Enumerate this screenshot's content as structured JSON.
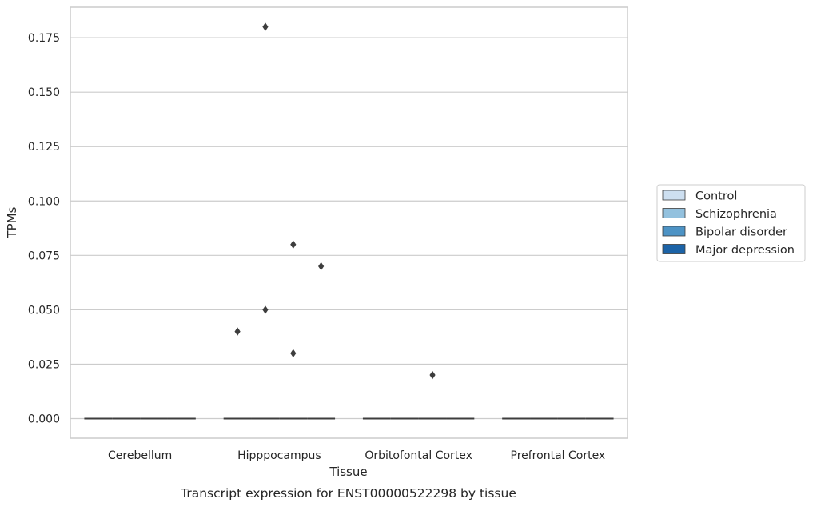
{
  "chart_data": {
    "type": "boxplot",
    "xlabel": "Tissue",
    "ylabel": "TPMs",
    "caption": "Transcript expression for ENST00000522298 by tissue",
    "categories": [
      "Cerebellum",
      "Hipppocampus",
      "Orbitofontal Cortex",
      "Prefrontal Cortex"
    ],
    "ylim": [
      -0.009,
      0.189
    ],
    "yticks": [
      0.0,
      0.025,
      0.05,
      0.075,
      0.1,
      0.125,
      0.15,
      0.175
    ],
    "ytick_labels": [
      "0.000",
      "0.025",
      "0.050",
      "0.075",
      "0.100",
      "0.125",
      "0.150",
      "0.175"
    ],
    "grid": "horizontal",
    "legend_position": "right",
    "series": [
      {
        "name": "Control",
        "color": "#cddff0"
      },
      {
        "name": "Schizophrenia",
        "color": "#93c1de"
      },
      {
        "name": "Bipolar disorder",
        "color": "#4d93c5"
      },
      {
        "name": "Major depression",
        "color": "#1c63a7"
      }
    ],
    "boxes": [
      {
        "category": "Cerebellum",
        "median": 0.0
      },
      {
        "category": "Hipppocampus",
        "median": 0.0
      },
      {
        "category": "Orbitofontal Cortex",
        "median": 0.0
      },
      {
        "category": "Prefrontal Cortex",
        "median": 0.0
      }
    ],
    "outliers": [
      {
        "category": "Hipppocampus",
        "series": "Control",
        "value": 0.04
      },
      {
        "category": "Hipppocampus",
        "series": "Schizophrenia",
        "value": 0.18
      },
      {
        "category": "Hipppocampus",
        "series": "Schizophrenia",
        "value": 0.05
      },
      {
        "category": "Hipppocampus",
        "series": "Bipolar disorder",
        "value": 0.08
      },
      {
        "category": "Hipppocampus",
        "series": "Bipolar disorder",
        "value": 0.03
      },
      {
        "category": "Hipppocampus",
        "series": "Major depression",
        "value": 0.07
      },
      {
        "category": "Orbitofontal Cortex",
        "series": "Bipolar disorder",
        "value": 0.02
      }
    ]
  }
}
